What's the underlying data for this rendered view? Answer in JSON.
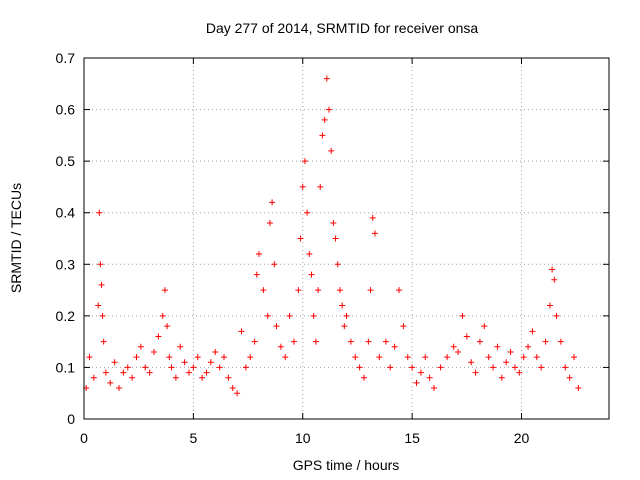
{
  "chart_data": {
    "type": "scatter",
    "title": "Day 277 of 2014, SRMTID for receiver onsa",
    "xlabel": "GPS time / hours",
    "ylabel": "SRMTID / TECUs",
    "xlim": [
      0,
      24
    ],
    "ylim": [
      0,
      0.7
    ],
    "xticks": [
      0,
      5,
      10,
      15,
      20
    ],
    "yticks": [
      0,
      0.1,
      0.2,
      0.3,
      0.4,
      0.5,
      0.6,
      0.7
    ],
    "grid": true,
    "marker": "+",
    "colors": {
      "series": "#ff0000",
      "grid": "#a0a0a0",
      "axis": "#000000"
    },
    "series": [
      {
        "name": "SRMTID",
        "x": [
          0.1,
          0.25,
          0.45,
          0.65,
          0.7,
          0.75,
          0.8,
          0.85,
          0.9,
          1.0,
          1.2,
          1.4,
          1.6,
          1.8,
          2.0,
          2.2,
          2.4,
          2.6,
          2.8,
          3.0,
          3.2,
          3.4,
          3.6,
          3.7,
          3.8,
          3.9,
          4.0,
          4.2,
          4.4,
          4.6,
          4.8,
          5.0,
          5.2,
          5.4,
          5.6,
          5.8,
          6.0,
          6.2,
          6.4,
          6.6,
          6.8,
          7.0,
          7.2,
          7.4,
          7.6,
          7.8,
          7.9,
          8.0,
          8.2,
          8.4,
          8.5,
          8.6,
          8.7,
          8.8,
          9.0,
          9.2,
          9.4,
          9.6,
          9.8,
          9.9,
          10.0,
          10.1,
          10.2,
          10.3,
          10.4,
          10.5,
          10.6,
          10.7,
          10.8,
          10.9,
          11.0,
          11.1,
          11.2,
          11.3,
          11.4,
          11.5,
          11.6,
          11.7,
          11.8,
          11.9,
          12.0,
          12.2,
          12.4,
          12.6,
          12.8,
          13.0,
          13.1,
          13.2,
          13.3,
          13.5,
          13.8,
          14.0,
          14.2,
          14.4,
          14.6,
          14.8,
          15.0,
          15.2,
          15.4,
          15.6,
          15.8,
          16.0,
          16.3,
          16.6,
          16.9,
          17.1,
          17.3,
          17.5,
          17.7,
          17.9,
          18.1,
          18.3,
          18.5,
          18.7,
          18.9,
          19.1,
          19.3,
          19.5,
          19.7,
          19.9,
          20.1,
          20.3,
          20.5,
          20.7,
          20.9,
          21.1,
          21.3,
          21.4,
          21.5,
          21.6,
          21.8,
          22.0,
          22.2,
          22.4,
          22.6
        ],
        "y": [
          0.06,
          0.12,
          0.08,
          0.22,
          0.4,
          0.3,
          0.26,
          0.2,
          0.15,
          0.09,
          0.07,
          0.11,
          0.06,
          0.09,
          0.1,
          0.08,
          0.12,
          0.14,
          0.1,
          0.09,
          0.13,
          0.16,
          0.2,
          0.25,
          0.18,
          0.12,
          0.1,
          0.08,
          0.14,
          0.11,
          0.09,
          0.1,
          0.12,
          0.08,
          0.09,
          0.11,
          0.13,
          0.1,
          0.12,
          0.08,
          0.06,
          0.05,
          0.17,
          0.1,
          0.12,
          0.15,
          0.28,
          0.32,
          0.25,
          0.2,
          0.38,
          0.42,
          0.3,
          0.18,
          0.14,
          0.12,
          0.2,
          0.15,
          0.25,
          0.35,
          0.45,
          0.5,
          0.4,
          0.32,
          0.28,
          0.2,
          0.15,
          0.25,
          0.45,
          0.55,
          0.58,
          0.66,
          0.6,
          0.52,
          0.38,
          0.35,
          0.3,
          0.25,
          0.22,
          0.18,
          0.2,
          0.15,
          0.12,
          0.1,
          0.08,
          0.15,
          0.25,
          0.39,
          0.36,
          0.12,
          0.15,
          0.1,
          0.14,
          0.25,
          0.18,
          0.12,
          0.1,
          0.07,
          0.09,
          0.12,
          0.08,
          0.06,
          0.1,
          0.12,
          0.14,
          0.13,
          0.2,
          0.16,
          0.11,
          0.09,
          0.15,
          0.18,
          0.12,
          0.1,
          0.14,
          0.08,
          0.11,
          0.13,
          0.1,
          0.09,
          0.12,
          0.14,
          0.17,
          0.12,
          0.1,
          0.15,
          0.22,
          0.29,
          0.27,
          0.2,
          0.15,
          0.1,
          0.08,
          0.12,
          0.06
        ]
      }
    ]
  }
}
